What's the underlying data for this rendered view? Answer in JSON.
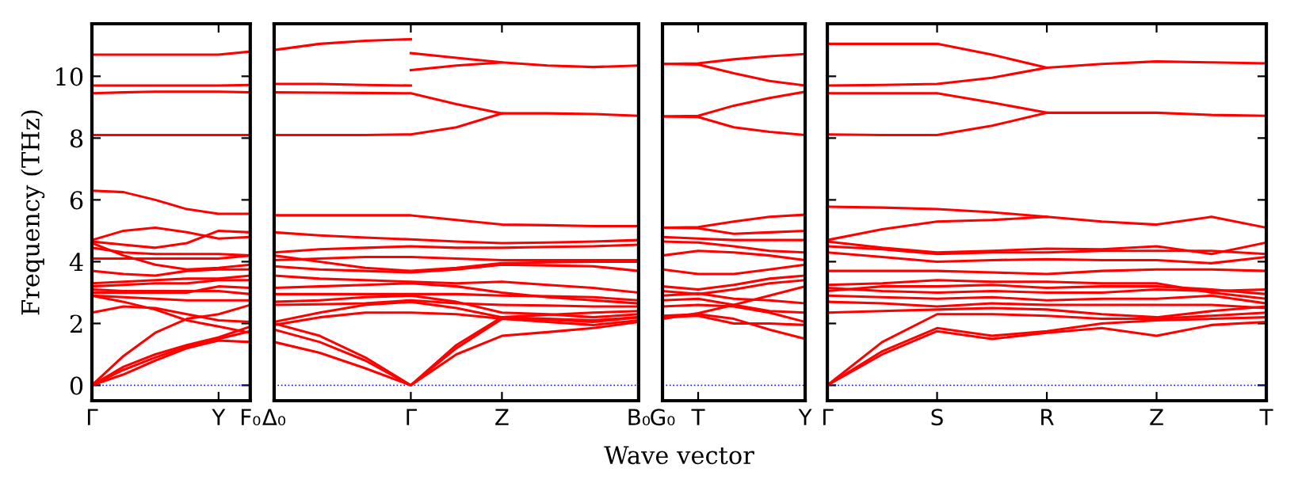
{
  "chart_data": [
    {
      "type": "line",
      "ylabel": "Frequency (THz)",
      "ylim": [
        -0.5,
        11.7
      ],
      "yticks": [
        0,
        2,
        4,
        6,
        8,
        10
      ],
      "categories": [
        "Γ",
        null,
        null,
        null,
        "Y",
        "F₀"
      ],
      "ref_lines": [
        {
          "axis": "y",
          "value": 0,
          "color": "#0000ff",
          "line_style": "dotted"
        }
      ],
      "series": [
        {
          "color": "#ff0000",
          "values": [
            10.7,
            10.7,
            10.7,
            10.7,
            10.7,
            10.8
          ]
        },
        {
          "color": "#ff0000",
          "values": [
            9.7,
            9.7,
            9.7,
            9.7,
            9.7,
            9.72
          ]
        },
        {
          "color": "#ff0000",
          "values": [
            9.45,
            9.48,
            9.5,
            9.5,
            9.5,
            9.48
          ]
        },
        {
          "color": "#ff0000",
          "values": [
            8.1,
            8.1,
            8.1,
            8.1,
            8.1,
            8.1
          ]
        },
        {
          "color": "#ff0000",
          "values": [
            6.3,
            6.25,
            6.0,
            5.7,
            5.55,
            5.55
          ]
        },
        {
          "color": "#ff0000",
          "values": [
            4.7,
            5.0,
            5.1,
            4.95,
            4.75,
            4.8
          ]
        },
        {
          "color": "#ff0000",
          "values": [
            4.65,
            4.55,
            4.45,
            4.6,
            5.0,
            4.95
          ]
        },
        {
          "color": "#ff0000",
          "values": [
            4.45,
            4.3,
            4.25,
            4.25,
            4.25,
            4.2
          ]
        },
        {
          "color": "#ff0000",
          "values": [
            4.1,
            4.1,
            4.1,
            4.1,
            4.1,
            4.2
          ]
        },
        {
          "color": "#ff0000",
          "values": [
            4.6,
            4.2,
            3.9,
            3.75,
            3.8,
            3.9
          ]
        },
        {
          "color": "#ff0000",
          "values": [
            3.7,
            3.6,
            3.55,
            3.7,
            3.75,
            3.75
          ]
        },
        {
          "color": "#ff0000",
          "values": [
            3.3,
            3.35,
            3.4,
            3.45,
            3.45,
            3.55
          ]
        },
        {
          "color": "#ff0000",
          "values": [
            3.2,
            3.25,
            3.3,
            3.3,
            3.4,
            3.4
          ]
        },
        {
          "color": "#ff0000",
          "values": [
            3.1,
            3.05,
            3.05,
            3.05,
            3.05,
            2.95
          ]
        },
        {
          "color": "#ff0000",
          "values": [
            3.0,
            3.0,
            3.0,
            3.0,
            3.2,
            3.15
          ]
        },
        {
          "color": "#ff0000",
          "values": [
            2.9,
            2.85,
            2.8,
            2.75,
            2.75,
            2.75
          ]
        },
        {
          "color": "#ff0000",
          "values": [
            2.35,
            2.55,
            2.5,
            2.3,
            2.1,
            2.05
          ]
        },
        {
          "color": "#ff0000",
          "values": [
            2.9,
            2.7,
            2.45,
            2.1,
            1.9,
            1.7
          ]
        },
        {
          "color": "#ff0000",
          "values": [
            0,
            0.95,
            1.7,
            2.15,
            2.3,
            2.6
          ]
        },
        {
          "color": "#ff0000",
          "values": [
            0,
            0.6,
            1.0,
            1.3,
            1.55,
            1.9
          ]
        },
        {
          "color": "#ff0000",
          "values": [
            0,
            0.5,
            0.9,
            1.25,
            1.5,
            1.75
          ]
        },
        {
          "color": "#ff0000",
          "values": [
            0,
            0.35,
            0.8,
            1.2,
            1.45,
            1.4
          ]
        }
      ]
    },
    {
      "type": "line",
      "ylim": [
        -0.5,
        11.7
      ],
      "tick_labels": "x",
      "annotations": [
        "Wave vector"
      ],
      "categories": [
        "Δ₀",
        null,
        null,
        "Γ",
        null,
        "Z",
        null,
        null,
        "B₀"
      ],
      "ref_lines": [
        {
          "axis": "y",
          "value": 0,
          "color": "#0000ff",
          "line_style": "dotted"
        }
      ],
      "series": [
        {
          "color": "#ff0000",
          "values": [
            10.85,
            11.05,
            11.15,
            11.2,
            null,
            null,
            null,
            null,
            null
          ]
        },
        {
          "color": "#ff0000",
          "values": [
            9.75,
            9.75,
            9.72,
            9.7,
            null,
            null,
            null,
            null,
            null
          ]
        },
        {
          "color": "#ff0000",
          "values": [
            9.48,
            9.47,
            9.46,
            9.45,
            9.1,
            8.8,
            8.8,
            8.78,
            8.72
          ]
        },
        {
          "color": "#ff0000",
          "values": [
            8.1,
            8.1,
            8.1,
            8.12,
            8.35,
            8.8,
            null,
            null,
            null
          ]
        },
        {
          "color": "#ff0000",
          "values": [
            null,
            null,
            null,
            10.75,
            10.6,
            10.45,
            10.35,
            10.3,
            10.35
          ]
        },
        {
          "color": "#ff0000",
          "values": [
            null,
            null,
            null,
            10.2,
            10.35,
            10.45,
            null,
            null,
            null
          ]
        },
        {
          "color": "#ff0000",
          "values": [
            5.5,
            5.5,
            5.5,
            5.5,
            5.35,
            5.2,
            5.18,
            5.15,
            5.15
          ]
        },
        {
          "color": "#ff0000",
          "values": [
            4.95,
            4.85,
            4.78,
            4.72,
            4.65,
            4.6,
            4.62,
            4.65,
            4.7
          ]
        },
        {
          "color": "#ff0000",
          "values": [
            4.3,
            4.4,
            4.45,
            4.5,
            4.45,
            4.45,
            4.48,
            4.5,
            4.55
          ]
        },
        {
          "color": "#ff0000",
          "values": [
            4.2,
            4.0,
            3.8,
            3.7,
            3.8,
            3.95,
            3.98,
            4.0,
            4.0
          ]
        },
        {
          "color": "#ff0000",
          "values": [
            4.05,
            4.1,
            4.15,
            4.15,
            4.1,
            4.05,
            4.05,
            4.05,
            4.05
          ]
        },
        {
          "color": "#ff0000",
          "values": [
            3.85,
            3.75,
            3.7,
            3.65,
            3.75,
            3.9,
            3.88,
            3.85,
            3.7
          ]
        },
        {
          "color": "#ff0000",
          "values": [
            3.55,
            3.45,
            3.4,
            3.35,
            3.3,
            3.35,
            3.25,
            3.15,
            3.0
          ]
        },
        {
          "color": "#ff0000",
          "values": [
            2.95,
            2.95,
            2.95,
            2.95,
            2.95,
            2.9,
            2.88,
            2.85,
            2.75
          ]
        },
        {
          "color": "#ff0000",
          "values": [
            3.15,
            3.2,
            3.25,
            3.3,
            3.2,
            3.0,
            2.85,
            2.75,
            2.65
          ]
        },
        {
          "color": "#ff0000",
          "values": [
            2.6,
            2.62,
            2.65,
            2.75,
            2.65,
            2.6,
            2.58,
            2.55,
            2.55
          ]
        },
        {
          "color": "#ff0000",
          "values": [
            2.7,
            2.75,
            2.85,
            2.9,
            2.7,
            2.35,
            2.3,
            2.2,
            2.3
          ]
        },
        {
          "color": "#ff0000",
          "values": [
            2.05,
            2.35,
            2.6,
            2.7,
            2.5,
            2.2,
            2.28,
            2.35,
            2.4
          ]
        },
        {
          "color": "#ff0000",
          "values": [
            1.95,
            2.2,
            2.35,
            2.35,
            2.3,
            2.15,
            2.12,
            2.05,
            2.2
          ]
        },
        {
          "color": "#ff0000",
          "values": [
            1.4,
            1.05,
            0.55,
            0,
            1.0,
            1.6,
            1.72,
            1.85,
            2.05
          ]
        },
        {
          "color": "#ff0000",
          "values": [
            1.8,
            1.4,
            0.8,
            0,
            1.2,
            2.15,
            2.05,
            1.95,
            2.1
          ]
        },
        {
          "color": "#ff0000",
          "values": [
            2.0,
            1.6,
            0.9,
            0,
            1.3,
            2.2,
            2.15,
            2.1,
            2.2
          ]
        }
      ]
    },
    {
      "type": "line",
      "ylim": [
        -0.5,
        11.7
      ],
      "tick_labels": "x",
      "categories": [
        "G₀",
        "T",
        null,
        null,
        "Y"
      ],
      "ref_lines": [
        {
          "axis": "y",
          "value": 0,
          "color": "#0000ff",
          "line_style": "dotted"
        }
      ],
      "series": [
        {
          "color": "#ff0000",
          "values": [
            10.4,
            10.42,
            10.55,
            10.65,
            10.72
          ]
        },
        {
          "color": "#ff0000",
          "values": [
            10.4,
            10.38,
            10.1,
            9.85,
            9.7
          ]
        },
        {
          "color": "#ff0000",
          "values": [
            8.7,
            8.72,
            9.05,
            9.3,
            9.5
          ]
        },
        {
          "color": "#ff0000",
          "values": [
            8.7,
            8.68,
            8.35,
            8.2,
            8.1
          ]
        },
        {
          "color": "#ff0000",
          "values": [
            5.1,
            5.12,
            5.3,
            5.45,
            5.52
          ]
        },
        {
          "color": "#ff0000",
          "values": [
            5.1,
            5.08,
            4.9,
            4.95,
            5.0
          ]
        },
        {
          "color": "#ff0000",
          "values": [
            4.8,
            4.75,
            4.7,
            4.7,
            4.7
          ]
        },
        {
          "color": "#ff0000",
          "values": [
            4.65,
            4.62,
            4.5,
            4.35,
            4.3
          ]
        },
        {
          "color": "#ff0000",
          "values": [
            4.2,
            4.35,
            4.3,
            4.2,
            4.05
          ]
        },
        {
          "color": "#ff0000",
          "values": [
            3.75,
            3.6,
            3.6,
            3.75,
            3.9
          ]
        },
        {
          "color": "#ff0000",
          "values": [
            3.2,
            3.1,
            3.25,
            3.45,
            3.55
          ]
        },
        {
          "color": "#ff0000",
          "values": [
            3.05,
            2.95,
            3.1,
            3.3,
            3.4
          ]
        },
        {
          "color": "#ff0000",
          "values": [
            2.9,
            2.97,
            2.8,
            2.75,
            2.65
          ]
        },
        {
          "color": "#ff0000",
          "values": [
            2.75,
            2.8,
            2.6,
            2.4,
            2.35
          ]
        },
        {
          "color": "#ff0000",
          "values": [
            2.55,
            2.6,
            2.55,
            2.35,
            2.05
          ]
        },
        {
          "color": "#ff0000",
          "values": [
            2.25,
            2.3,
            2.15,
            1.8,
            1.5
          ]
        },
        {
          "color": "#ff0000",
          "values": [
            2.2,
            2.25,
            2.0,
            2.0,
            1.95
          ]
        },
        {
          "color": "#ff0000",
          "values": [
            2.15,
            2.33,
            2.6,
            2.9,
            3.2
          ]
        }
      ]
    },
    {
      "type": "line",
      "ylim": [
        -0.5,
        11.7
      ],
      "yticks": [
        0,
        2,
        4,
        6,
        8,
        10
      ],
      "tick_labels": "x",
      "categories": [
        "Γ",
        null,
        "S",
        null,
        "R",
        null,
        "Z",
        null,
        "T"
      ],
      "ref_lines": [
        {
          "axis": "y",
          "value": 0,
          "color": "#0000ff",
          "line_style": "dotted"
        }
      ],
      "series": [
        {
          "color": "#ff0000",
          "values": [
            11.05,
            11.05,
            11.05,
            10.7,
            10.28,
            10.4,
            10.48,
            10.45,
            10.42
          ]
        },
        {
          "color": "#ff0000",
          "values": [
            9.7,
            9.72,
            9.75,
            9.95,
            10.28,
            null,
            null,
            null,
            null
          ]
        },
        {
          "color": "#ff0000",
          "values": [
            9.45,
            9.45,
            9.45,
            9.15,
            8.82,
            8.82,
            8.82,
            8.75,
            8.72
          ]
        },
        {
          "color": "#ff0000",
          "values": [
            8.12,
            8.1,
            8.1,
            8.4,
            8.82,
            null,
            null,
            null,
            null
          ]
        },
        {
          "color": "#ff0000",
          "values": [
            5.78,
            5.75,
            5.7,
            5.6,
            5.45,
            5.3,
            5.2,
            5.45,
            5.1
          ]
        },
        {
          "color": "#ff0000",
          "values": [
            4.7,
            5.05,
            5.3,
            5.35,
            5.45,
            null,
            null,
            null,
            null
          ]
        },
        {
          "color": "#ff0000",
          "values": [
            4.65,
            4.45,
            4.3,
            4.35,
            4.42,
            4.4,
            4.5,
            4.25,
            4.62
          ]
        },
        {
          "color": "#ff0000",
          "values": [
            4.5,
            4.4,
            4.25,
            4.3,
            4.3,
            4.35,
            4.35,
            4.35,
            4.25
          ]
        },
        {
          "color": "#ff0000",
          "values": [
            4.3,
            4.15,
            4.0,
            4.05,
            4.08,
            4.05,
            4.05,
            3.95,
            4.15
          ]
        },
        {
          "color": "#ff0000",
          "values": [
            3.7,
            3.7,
            3.7,
            3.65,
            3.6,
            3.7,
            3.75,
            3.75,
            3.7
          ]
        },
        {
          "color": "#ff0000",
          "values": [
            3.05,
            3.2,
            3.2,
            3.25,
            3.15,
            3.2,
            3.2,
            3.1,
            2.95
          ]
        },
        {
          "color": "#ff0000",
          "values": [
            3.25,
            3.3,
            3.4,
            3.35,
            3.35,
            3.3,
            3.3,
            3.0,
            2.8
          ]
        },
        {
          "color": "#ff0000",
          "values": [
            3.15,
            3.05,
            3.0,
            3.05,
            3.0,
            3.0,
            3.1,
            3.05,
            3.1
          ]
        },
        {
          "color": "#ff0000",
          "values": [
            2.9,
            2.85,
            2.8,
            2.85,
            2.75,
            2.8,
            2.8,
            2.9,
            2.65
          ]
        },
        {
          "color": "#ff0000",
          "values": [
            2.7,
            2.65,
            2.55,
            2.65,
            2.6,
            2.6,
            2.6,
            2.6,
            2.5
          ]
        },
        {
          "color": "#ff0000",
          "values": [
            2.35,
            2.4,
            2.45,
            2.5,
            2.45,
            2.3,
            2.2,
            2.4,
            2.55
          ]
        },
        {
          "color": "#ff0000",
          "values": [
            0,
            1.4,
            2.3,
            2.3,
            2.25,
            2.15,
            2.15,
            2.25,
            2.35
          ]
        },
        {
          "color": "#ff0000",
          "values": [
            0,
            1.1,
            1.85,
            1.6,
            1.75,
            2.0,
            2.1,
            2.15,
            2.2
          ]
        },
        {
          "color": "#ff0000",
          "values": [
            0,
            1.0,
            1.75,
            1.5,
            1.7,
            1.85,
            1.6,
            1.95,
            2.05
          ]
        }
      ]
    }
  ]
}
